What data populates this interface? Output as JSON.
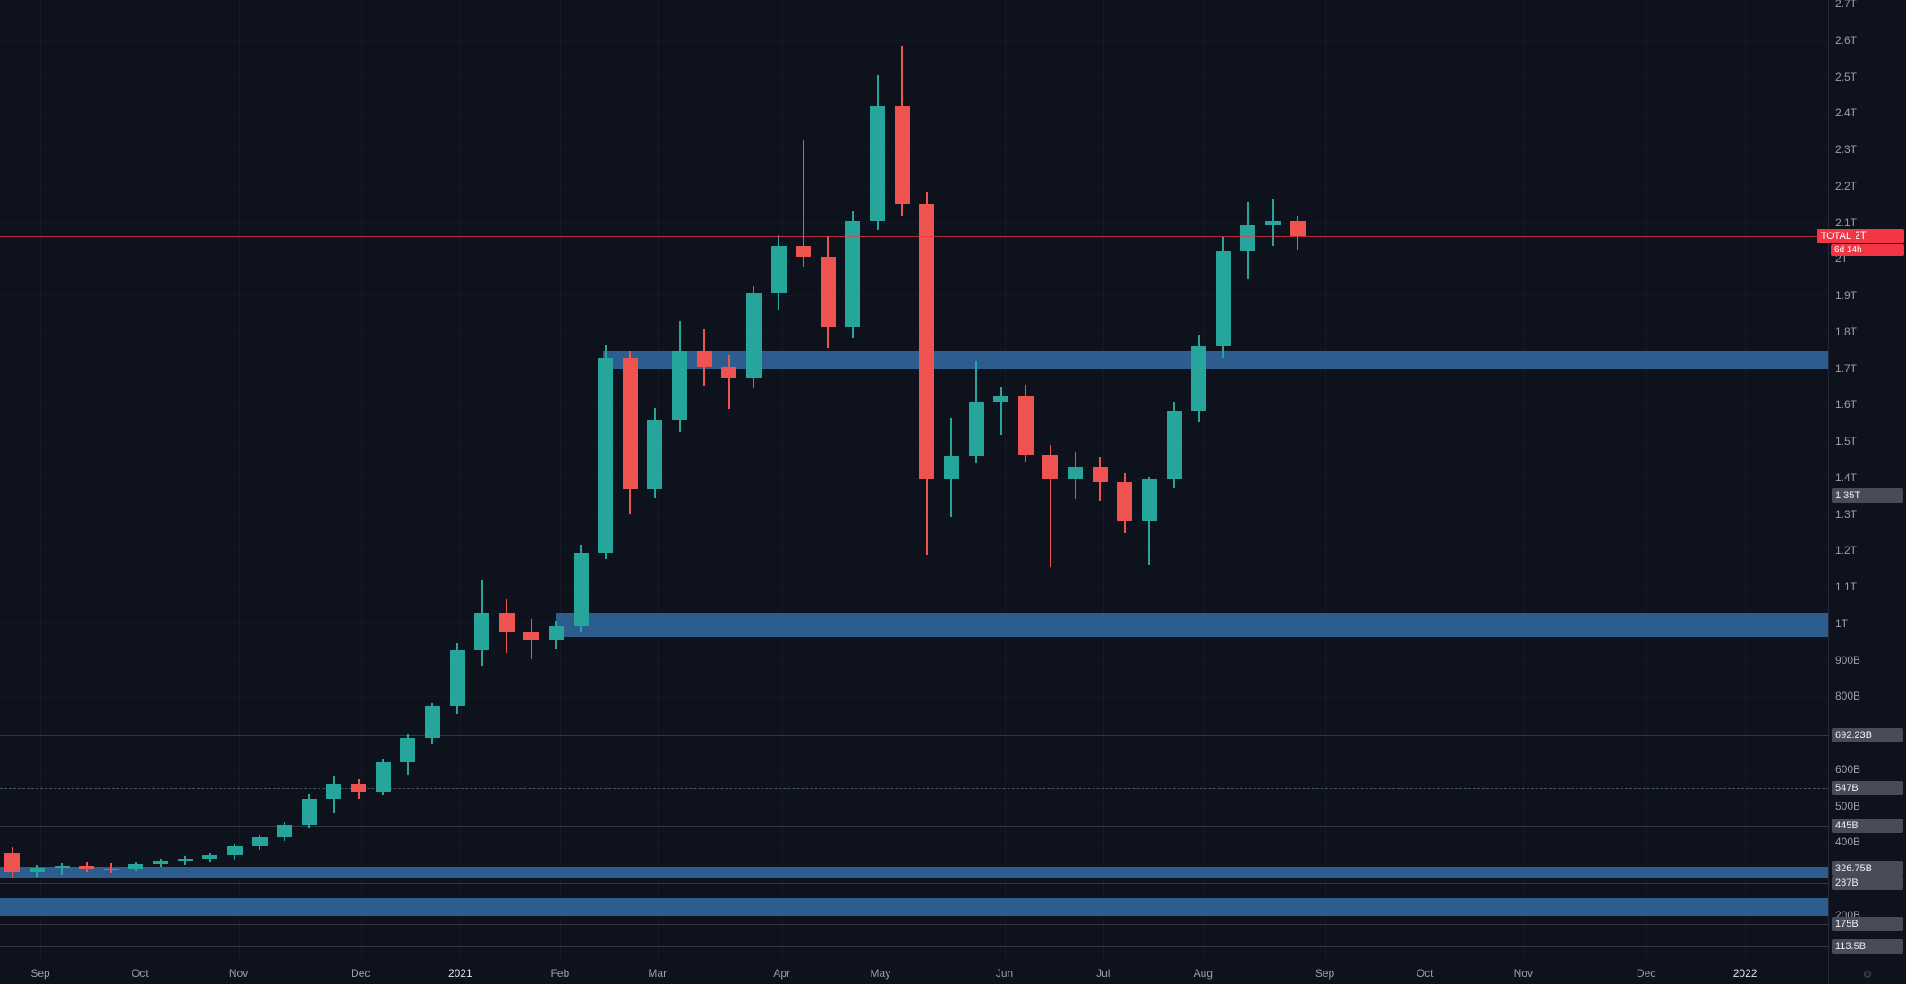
{
  "chart_data": {
    "type": "candlestick",
    "symbol": "TOTAL",
    "timeframe_note": "weekly candles, Sep 2020 - Sep 2021 visible, axis extends to 2022",
    "ohlc_order": [
      "open",
      "high",
      "low",
      "close"
    ],
    "unit": "billions USD (B), T = trillions",
    "slots_total": 74,
    "price_scale": {
      "top_billions": 2710,
      "bottom_billions": 67
    },
    "candles_ohlc_billions": [
      [
        372,
        385,
        300,
        318
      ],
      [
        318,
        338,
        305,
        330
      ],
      [
        330,
        342,
        310,
        335
      ],
      [
        335,
        345,
        318,
        328
      ],
      [
        328,
        342,
        315,
        325
      ],
      [
        325,
        345,
        320,
        340
      ],
      [
        340,
        355,
        332,
        348
      ],
      [
        348,
        362,
        338,
        355
      ],
      [
        355,
        372,
        345,
        365
      ],
      [
        365,
        395,
        352,
        388
      ],
      [
        388,
        420,
        378,
        412
      ],
      [
        412,
        455,
        402,
        448
      ],
      [
        448,
        530,
        438,
        518
      ],
      [
        518,
        580,
        480,
        560
      ],
      [
        560,
        572,
        518,
        538
      ],
      [
        538,
        628,
        528,
        618
      ],
      [
        618,
        695,
        585,
        685
      ],
      [
        685,
        782,
        668,
        773
      ],
      [
        773,
        945,
        752,
        925
      ],
      [
        925,
        1120,
        882,
        1030
      ],
      [
        1030,
        1065,
        918,
        975
      ],
      [
        975,
        1012,
        902,
        952
      ],
      [
        952,
        1008,
        928,
        992
      ],
      [
        992,
        1215,
        975,
        1193
      ],
      [
        1193,
        1763,
        1175,
        1728
      ],
      [
        1728,
        1748,
        1298,
        1368
      ],
      [
        1368,
        1590,
        1342,
        1558
      ],
      [
        1558,
        1830,
        1525,
        1748
      ],
      [
        1748,
        1808,
        1652,
        1705
      ],
      [
        1705,
        1735,
        1588,
        1672
      ],
      [
        1672,
        1925,
        1645,
        1905
      ],
      [
        1905,
        2065,
        1862,
        2035
      ],
      [
        2035,
        2325,
        1975,
        2005
      ],
      [
        2005,
        2062,
        1755,
        1812
      ],
      [
        1812,
        2130,
        1782,
        2105
      ],
      [
        2105,
        2505,
        2080,
        2420
      ],
      [
        2420,
        2585,
        2118,
        2150
      ],
      [
        2150,
        2182,
        1188,
        1398
      ],
      [
        1398,
        1565,
        1292,
        1458
      ],
      [
        1458,
        1720,
        1438,
        1608
      ],
      [
        1608,
        1648,
        1518,
        1622
      ],
      [
        1622,
        1655,
        1442,
        1462
      ],
      [
        1462,
        1488,
        1155,
        1398
      ],
      [
        1398,
        1470,
        1340,
        1428
      ],
      [
        1428,
        1455,
        1335,
        1388
      ],
      [
        1388,
        1412,
        1248,
        1282
      ],
      [
        1282,
        1402,
        1158,
        1395
      ],
      [
        1395,
        1608,
        1372,
        1580
      ],
      [
        1580,
        1790,
        1552,
        1760
      ],
      [
        1760,
        2060,
        1728,
        2020
      ],
      [
        2020,
        2155,
        1945,
        2095
      ],
      [
        2095,
        2165,
        2035,
        2105
      ],
      [
        2105,
        2118,
        2022,
        2062
      ]
    ],
    "time_axis": [
      {
        "label": "Sep",
        "slot": 1.63,
        "year": false
      },
      {
        "label": "Oct",
        "slot": 5.66,
        "year": false
      },
      {
        "label": "Nov",
        "slot": 9.65,
        "year": false
      },
      {
        "label": "Dec",
        "slot": 14.58,
        "year": false
      },
      {
        "label": "2021",
        "slot": 18.62,
        "year": true
      },
      {
        "label": "Feb",
        "slot": 22.66,
        "year": false
      },
      {
        "label": "Mar",
        "slot": 26.6,
        "year": false
      },
      {
        "label": "Apr",
        "slot": 31.63,
        "year": false
      },
      {
        "label": "May",
        "slot": 35.62,
        "year": false
      },
      {
        "label": "Jun",
        "slot": 40.64,
        "year": false
      },
      {
        "label": "Jul",
        "slot": 44.63,
        "year": false
      },
      {
        "label": "Aug",
        "slot": 48.67,
        "year": false
      },
      {
        "label": "Sep",
        "slot": 53.6,
        "year": false
      },
      {
        "label": "Oct",
        "slot": 57.64,
        "year": false
      },
      {
        "label": "Nov",
        "slot": 61.63,
        "year": false
      },
      {
        "label": "Dec",
        "slot": 66.6,
        "year": false
      },
      {
        "label": "2022",
        "slot": 70.6,
        "year": true
      }
    ],
    "price_axis": {
      "plain_ticks": [
        {
          "label": "2.7T",
          "value": 2700
        },
        {
          "label": "2.6T",
          "value": 2600
        },
        {
          "label": "2.5T",
          "value": 2500
        },
        {
          "label": "2.4T",
          "value": 2400
        },
        {
          "label": "2.3T",
          "value": 2300
        },
        {
          "label": "2.2T",
          "value": 2200
        },
        {
          "label": "2.1T",
          "value": 2100
        },
        {
          "label": "2T",
          "value": 2000
        },
        {
          "label": "1.9T",
          "value": 1900
        },
        {
          "label": "1.8T",
          "value": 1800
        },
        {
          "label": "1.7T",
          "value": 1700
        },
        {
          "label": "1.6T",
          "value": 1600
        },
        {
          "label": "1.5T",
          "value": 1500
        },
        {
          "label": "1.4T",
          "value": 1400
        },
        {
          "label": "1.3T",
          "value": 1300
        },
        {
          "label": "1.2T",
          "value": 1200
        },
        {
          "label": "1.1T",
          "value": 1100
        },
        {
          "label": "1T",
          "value": 1000
        },
        {
          "label": "900B",
          "value": 900
        },
        {
          "label": "800B",
          "value": 800
        },
        {
          "label": "600B",
          "value": 600
        },
        {
          "label": "500B",
          "value": 500
        },
        {
          "label": "400B",
          "value": 400
        },
        {
          "label": "200B",
          "value": 200
        }
      ],
      "level_ticks": [
        {
          "label": "1.35T",
          "value": 1350,
          "line": "solid"
        },
        {
          "label": "692.23B",
          "value": 692.23,
          "line": "solid"
        },
        {
          "label": "547B",
          "value": 547,
          "line": "dashed"
        },
        {
          "label": "445B",
          "value": 445,
          "line": "solid"
        },
        {
          "label": "326.75B",
          "value": 326.75,
          "line": "solid"
        },
        {
          "label": "287B",
          "value": 287,
          "line": "solid"
        },
        {
          "label": "175B",
          "value": 175,
          "line": "solid"
        },
        {
          "label": "113.5B",
          "value": 113.5,
          "line": "solid"
        }
      ]
    },
    "zones": [
      {
        "from_billions": 1700,
        "to_billions": 1748,
        "start_slot": 24.4
      },
      {
        "from_billions": 962,
        "to_billions": 1028,
        "start_slot": 22.5
      },
      {
        "from_billions": 303,
        "to_billions": 331,
        "start_slot": 0
      },
      {
        "from_billions": 198,
        "to_billions": 245,
        "start_slot": 0
      }
    ],
    "current_price": {
      "value_billions": 2062,
      "label": "2.062T",
      "countdown": "6d 14h",
      "series_label": "TOTAL"
    },
    "colors": {
      "background": "#0e121c",
      "up": "#26a69a",
      "down": "#ef5350",
      "zone": "#2d5c8e",
      "price_line": "rgba(242,54,69,0.72)",
      "price_badge": "#f23645",
      "level_badge": "#474c58"
    }
  }
}
